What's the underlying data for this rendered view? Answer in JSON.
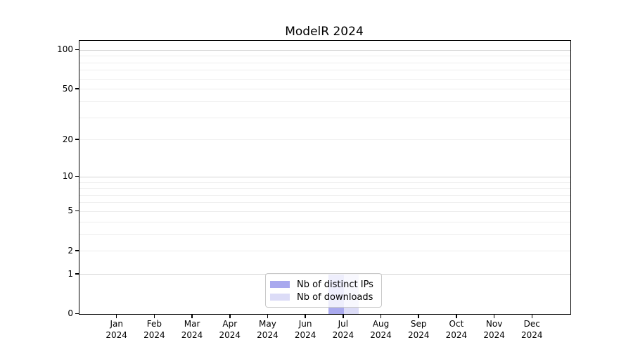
{
  "chart_data": {
    "type": "bar",
    "title": "ModelR 2024",
    "categories": [
      "Jan 2024",
      "Feb 2024",
      "Mar 2024",
      "Apr 2024",
      "May 2024",
      "Jun 2024",
      "Jul 2024",
      "Aug 2024",
      "Sep 2024",
      "Oct 2024",
      "Nov 2024",
      "Dec 2024"
    ],
    "x_tick_lines": [
      [
        "Jan",
        "2024"
      ],
      [
        "Feb",
        "2024"
      ],
      [
        "Mar",
        "2024"
      ],
      [
        "Apr",
        "2024"
      ],
      [
        "May",
        "2024"
      ],
      [
        "Jun",
        "2024"
      ],
      [
        "Jul",
        "2024"
      ],
      [
        "Aug",
        "2024"
      ],
      [
        "Sep",
        "2024"
      ],
      [
        "Oct",
        "2024"
      ],
      [
        "Nov",
        "2024"
      ],
      [
        "Dec",
        "2024"
      ]
    ],
    "series": [
      {
        "name": "Nb of distinct IPs",
        "color": "#a9a9ee",
        "values": [
          0,
          0,
          0,
          0,
          0,
          0,
          1,
          0,
          0,
          0,
          0,
          0
        ]
      },
      {
        "name": "Nb of downloads",
        "color": "#dcdcf7",
        "values": [
          0,
          0,
          0,
          0,
          0,
          0,
          1,
          0,
          0,
          0,
          0,
          0
        ]
      }
    ],
    "xlabel": "",
    "ylabel": "",
    "yscale": "log1p",
    "yticks": [
      0,
      1,
      2,
      5,
      10,
      20,
      50,
      100
    ],
    "major_gridlines": [
      1,
      10,
      100
    ],
    "minor_gridlines": [
      2,
      3,
      4,
      5,
      6,
      7,
      8,
      9,
      20,
      30,
      40,
      50,
      60,
      70,
      80,
      90
    ],
    "ylim": [
      0,
      118
    ],
    "grid": "horizontal",
    "grid_major_color": "#d4d4d4",
    "grid_minor_color": "#ededed",
    "legend_position": "lower center"
  }
}
